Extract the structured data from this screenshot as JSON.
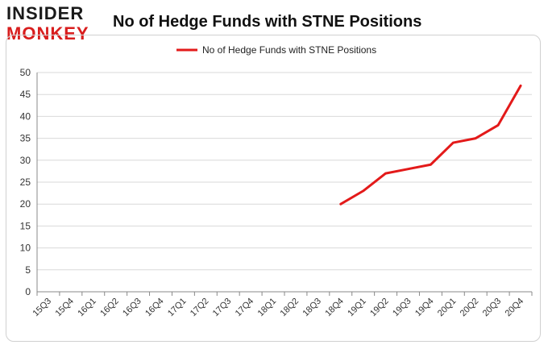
{
  "logo": {
    "line1": "INSIDER",
    "line2": "MONKEY"
  },
  "chart_data": {
    "type": "line",
    "title": "No of Hedge Funds with STNE Positions",
    "xlabel": "",
    "ylabel": "",
    "categories": [
      "15Q3",
      "15Q4",
      "16Q1",
      "16Q2",
      "16Q3",
      "16Q4",
      "17Q1",
      "17Q2",
      "17Q3",
      "17Q4",
      "18Q1",
      "18Q2",
      "18Q3",
      "18Q4",
      "19Q1",
      "19Q2",
      "19Q3",
      "19Q4",
      "20Q1",
      "20Q2",
      "20Q3",
      "20Q4"
    ],
    "series": [
      {
        "name": "No of Hedge Funds with STNE Positions",
        "values": [
          null,
          null,
          null,
          null,
          null,
          null,
          null,
          null,
          null,
          null,
          null,
          null,
          null,
          20,
          23,
          27,
          28,
          29,
          34,
          35,
          38,
          47
        ]
      }
    ],
    "ylim": [
      0,
      50
    ],
    "yticks": [
      0,
      5,
      10,
      15,
      20,
      25,
      30,
      35,
      40,
      45,
      50
    ],
    "grid": true,
    "legend": "top-center",
    "color": "#e31a1a"
  }
}
